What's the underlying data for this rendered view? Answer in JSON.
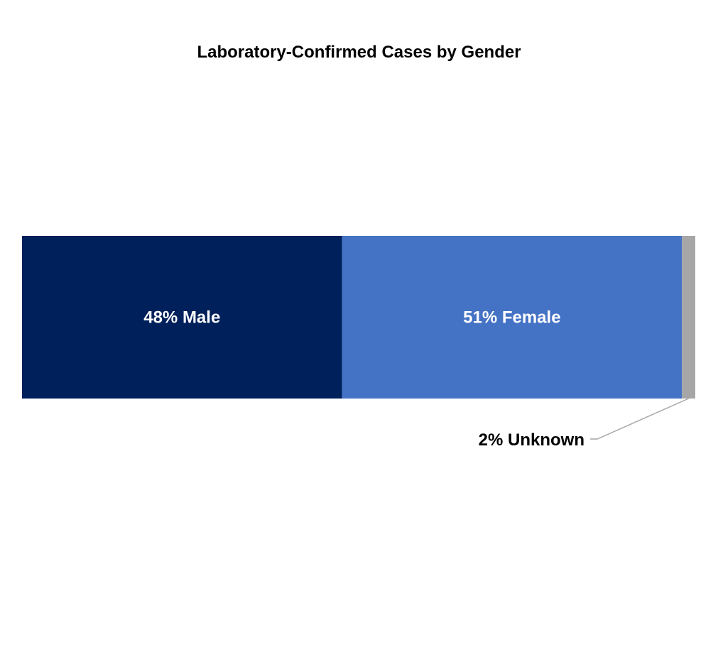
{
  "chart_data": {
    "type": "bar",
    "orientation": "horizontal-stacked-100",
    "title": "Laboratory-Confirmed Cases by Gender",
    "categories": [
      "Male",
      "Female",
      "Unknown"
    ],
    "values": [
      48,
      51,
      2
    ],
    "unit": "%",
    "labels": [
      "48% Male",
      "51% Female",
      "2% Unknown"
    ],
    "colors": [
      "#00205B",
      "#4472C4",
      "#A6A6A6"
    ],
    "grid": false,
    "legend": "none"
  }
}
